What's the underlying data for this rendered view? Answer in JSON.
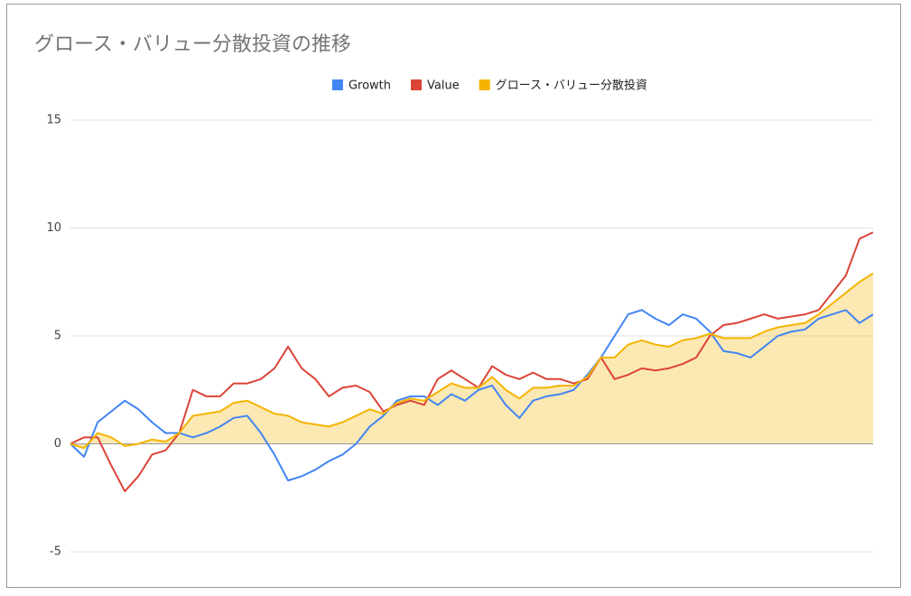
{
  "chart_data": {
    "type": "line",
    "title": "グロース・バリュー分散投資の推移",
    "categories": [
      null,
      null,
      null,
      null,
      null,
      null,
      null,
      null,
      null,
      null,
      null,
      null,
      null,
      null,
      null,
      null,
      null,
      null,
      null,
      null,
      null,
      null,
      null,
      null,
      null,
      null,
      null,
      null,
      null,
      null,
      null,
      null,
      null,
      null,
      null,
      null,
      null,
      null,
      null,
      null,
      null,
      null,
      null,
      null,
      null,
      null,
      null,
      null,
      null,
      null,
      null,
      null,
      null,
      null,
      null,
      null,
      null,
      null,
      null,
      null
    ],
    "series": [
      {
        "name": "Growth",
        "color": "#4285f4",
        "values": [
          0,
          -0.6,
          1.0,
          1.5,
          2.0,
          1.6,
          1.0,
          0.5,
          0.5,
          0.3,
          0.5,
          0.8,
          1.2,
          1.3,
          0.5,
          -0.5,
          -1.7,
          -1.5,
          -1.2,
          -0.8,
          -0.5,
          0,
          0.8,
          1.3,
          2.0,
          2.2,
          2.2,
          1.8,
          2.3,
          2.0,
          2.5,
          2.7,
          1.8,
          1.2,
          2.0,
          2.2,
          2.3,
          2.5,
          3.2,
          4.0,
          5.0,
          6.0,
          6.2,
          5.8,
          5.5,
          6.0,
          5.8,
          5.2,
          4.3,
          4.2,
          4.0,
          4.5,
          5.0,
          5.2,
          5.3,
          5.8,
          6.0,
          6.2,
          5.6,
          6.0
        ]
      },
      {
        "name": "Value",
        "color": "#db4437",
        "values": [
          0,
          0.3,
          0.3,
          -1.0,
          -2.2,
          -1.5,
          -0.5,
          -0.3,
          0.5,
          2.5,
          2.2,
          2.2,
          2.8,
          2.8,
          3.0,
          3.5,
          4.5,
          3.5,
          3.0,
          2.2,
          2.6,
          2.7,
          2.4,
          1.5,
          1.8,
          2.0,
          1.8,
          3.0,
          3.4,
          3.0,
          2.6,
          3.6,
          3.2,
          3.0,
          3.3,
          3.0,
          3.0,
          2.8,
          3.0,
          4.0,
          3.0,
          3.2,
          3.5,
          3.4,
          3.5,
          3.7,
          4.0,
          5.0,
          5.5,
          5.6,
          5.8,
          6.0,
          5.8,
          5.9,
          6.0,
          6.2,
          7.0,
          7.8,
          9.5,
          9.8
        ]
      },
      {
        "name": "グロース・バリュー分散投資",
        "color": "#f4b400",
        "fill": true,
        "values": [
          0,
          -0.2,
          0.5,
          0.3,
          -0.1,
          0,
          0.2,
          0.1,
          0.5,
          1.3,
          1.4,
          1.5,
          1.9,
          2.0,
          1.7,
          1.4,
          1.3,
          1.0,
          0.9,
          0.8,
          1.0,
          1.3,
          1.6,
          1.4,
          1.9,
          2.1,
          2.0,
          2.4,
          2.8,
          2.6,
          2.6,
          3.1,
          2.5,
          2.1,
          2.6,
          2.6,
          2.7,
          2.7,
          3.1,
          4.0,
          4.0,
          4.6,
          4.8,
          4.6,
          4.5,
          4.8,
          4.9,
          5.1,
          4.9,
          4.9,
          4.9,
          5.2,
          5.4,
          5.5,
          5.6,
          6.0,
          6.5,
          7.0,
          7.5,
          7.9
        ]
      }
    ],
    "ylim": [
      -5,
      15
    ],
    "yticks": [
      15,
      10,
      5,
      0,
      -5
    ],
    "grid": true,
    "legend": "top"
  }
}
